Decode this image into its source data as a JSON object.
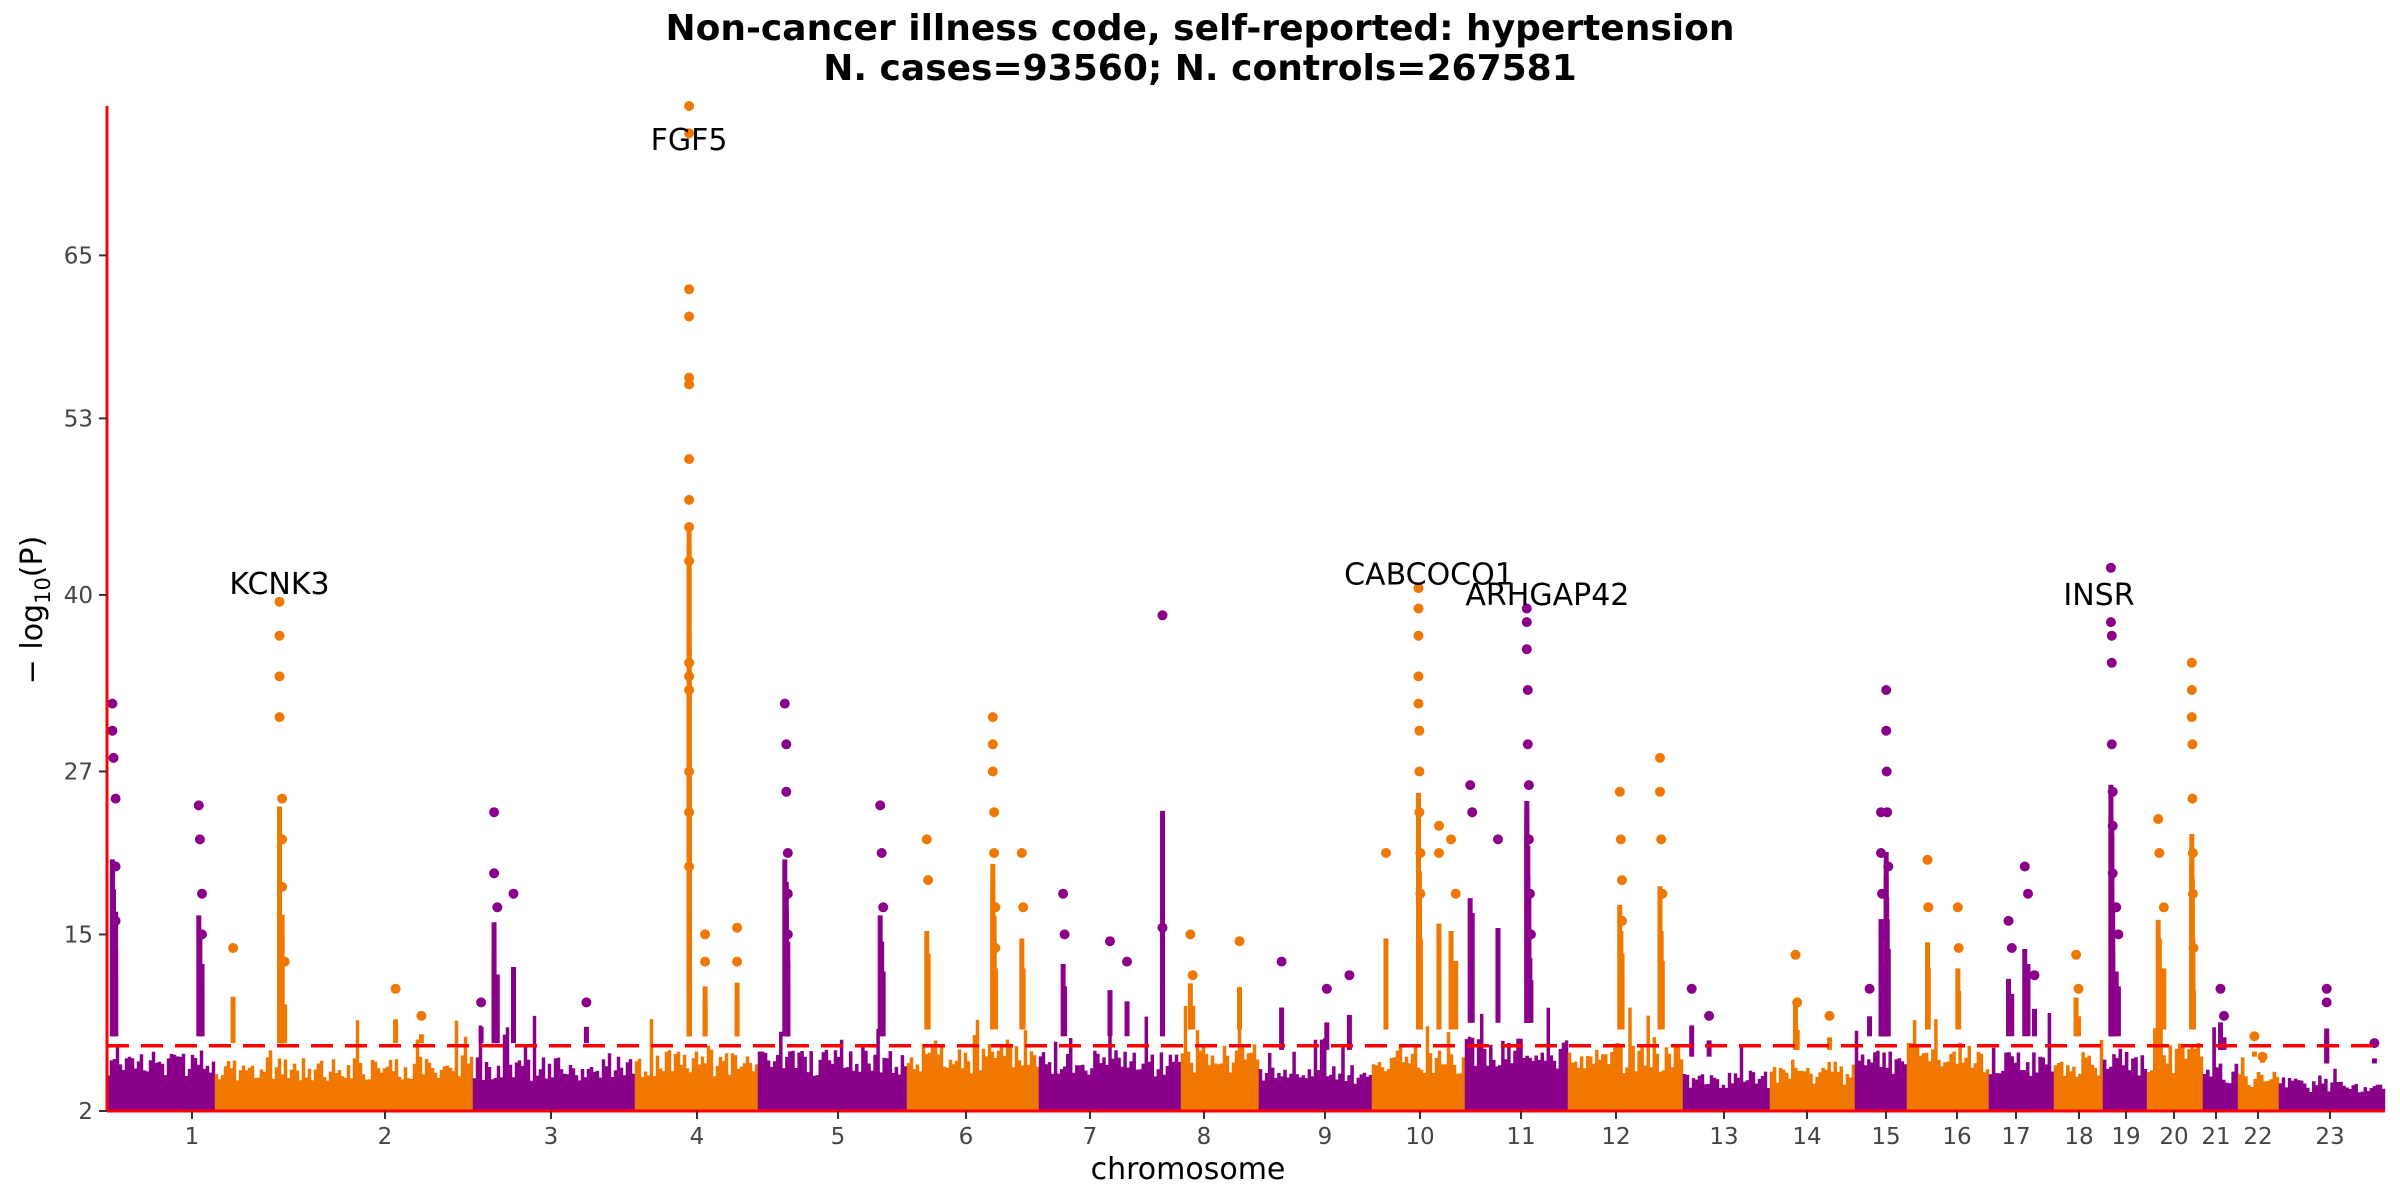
{
  "chart_data": {
    "type": "scatter",
    "subtype": "manhattan",
    "title": "Non-cancer illness code, self-reported: hypertension",
    "subtitle": "N. cases=93560; N. controls=267581",
    "xlabel": "chromosome",
    "ylabel_prefix": "− log",
    "ylabel_sub": "10",
    "ylabel_suffix": "(P)",
    "yticks": [
      2,
      15,
      27,
      40,
      53,
      65
    ],
    "ylim": [
      2,
      76
    ],
    "significance_threshold": 6.8,
    "colors": {
      "odd": "#8B008B",
      "even": "#F07800",
      "threshold": "#ff0000",
      "axis": "#ff0000"
    },
    "chromosomes": [
      {
        "label": "1",
        "bg": 6.5,
        "hits": [
          [
            0.05,
            32
          ],
          [
            0.05,
            30
          ],
          [
            0.06,
            28
          ],
          [
            0.08,
            25
          ],
          [
            0.08,
            20
          ],
          [
            0.08,
            16
          ],
          [
            0.85,
            24.5
          ],
          [
            0.86,
            22
          ],
          [
            0.88,
            18
          ],
          [
            0.88,
            15
          ]
        ]
      },
      {
        "label": "2",
        "bg": 6.0,
        "hits": [
          [
            0.07,
            14
          ],
          [
            0.25,
            39.5
          ],
          [
            0.25,
            37
          ],
          [
            0.25,
            34
          ],
          [
            0.25,
            31
          ],
          [
            0.26,
            25
          ],
          [
            0.26,
            22
          ],
          [
            0.26,
            18.5
          ],
          [
            0.27,
            13
          ],
          [
            0.7,
            11
          ],
          [
            0.8,
            9
          ]
        ]
      },
      {
        "label": "3",
        "bg": 6.0,
        "hits": [
          [
            0.05,
            10
          ],
          [
            0.13,
            24
          ],
          [
            0.13,
            19.5
          ],
          [
            0.15,
            17
          ],
          [
            0.25,
            18
          ],
          [
            0.7,
            10
          ]
        ]
      },
      {
        "label": "4",
        "bg": 6.5,
        "hits": [
          [
            0.44,
            76
          ],
          [
            0.44,
            74
          ],
          [
            0.44,
            62.5
          ],
          [
            0.44,
            60.5
          ],
          [
            0.44,
            56
          ],
          [
            0.44,
            55.5
          ],
          [
            0.44,
            50
          ],
          [
            0.44,
            47
          ],
          [
            0.44,
            45
          ],
          [
            0.44,
            42.5
          ],
          [
            0.44,
            35
          ],
          [
            0.44,
            34
          ],
          [
            0.44,
            33
          ],
          [
            0.44,
            27
          ],
          [
            0.44,
            24
          ],
          [
            0.44,
            20
          ],
          [
            0.57,
            15
          ],
          [
            0.57,
            13
          ],
          [
            0.83,
            15.5
          ],
          [
            0.83,
            13
          ]
        ]
      },
      {
        "label": "5",
        "bg": 6.5,
        "hits": [
          [
            0.18,
            32
          ],
          [
            0.19,
            29
          ],
          [
            0.19,
            25.5
          ],
          [
            0.2,
            21
          ],
          [
            0.2,
            18
          ],
          [
            0.2,
            15
          ],
          [
            0.82,
            24.5
          ],
          [
            0.83,
            21
          ],
          [
            0.84,
            17
          ]
        ]
      },
      {
        "label": "6",
        "bg": 7.0,
        "hits": [
          [
            0.15,
            22
          ],
          [
            0.16,
            19
          ],
          [
            0.65,
            31
          ],
          [
            0.65,
            29
          ],
          [
            0.65,
            27
          ],
          [
            0.66,
            24
          ],
          [
            0.66,
            21
          ],
          [
            0.67,
            17
          ],
          [
            0.67,
            14
          ],
          [
            0.87,
            21
          ],
          [
            0.88,
            17
          ]
        ]
      },
      {
        "label": "7",
        "bg": 6.5,
        "hits": [
          [
            0.17,
            18
          ],
          [
            0.18,
            15
          ],
          [
            0.5,
            14.5
          ],
          [
            0.62,
            13
          ],
          [
            0.87,
            38.5
          ],
          [
            0.87,
            15.5
          ]
        ]
      },
      {
        "label": "8",
        "bg": 7.0,
        "hits": [
          [
            0.12,
            15
          ],
          [
            0.15,
            12
          ],
          [
            0.75,
            14.5
          ]
        ]
      },
      {
        "label": "9",
        "bg": 5.5,
        "hits": [
          [
            0.2,
            13
          ],
          [
            0.6,
            11
          ],
          [
            0.8,
            12
          ]
        ]
      },
      {
        "label": "10",
        "bg": 7.0,
        "hits": [
          [
            0.15,
            21
          ],
          [
            0.5,
            40.5
          ],
          [
            0.5,
            39
          ],
          [
            0.5,
            37
          ],
          [
            0.5,
            34
          ],
          [
            0.5,
            32
          ],
          [
            0.51,
            30
          ],
          [
            0.51,
            27
          ],
          [
            0.51,
            24
          ],
          [
            0.52,
            21
          ],
          [
            0.52,
            18
          ],
          [
            0.72,
            23
          ],
          [
            0.72,
            21
          ],
          [
            0.85,
            22
          ],
          [
            0.9,
            18
          ]
        ]
      },
      {
        "label": "11",
        "bg": 7.5,
        "hits": [
          [
            0.05,
            26
          ],
          [
            0.07,
            24
          ],
          [
            0.32,
            22
          ],
          [
            0.6,
            39
          ],
          [
            0.6,
            38
          ],
          [
            0.6,
            36
          ],
          [
            0.61,
            33
          ],
          [
            0.61,
            29
          ],
          [
            0.62,
            26
          ],
          [
            0.62,
            22
          ],
          [
            0.63,
            18
          ],
          [
            0.64,
            15
          ]
        ]
      },
      {
        "label": "12",
        "bg": 7.0,
        "hits": [
          [
            0.45,
            25.5
          ],
          [
            0.46,
            22
          ],
          [
            0.47,
            19
          ],
          [
            0.47,
            16
          ],
          [
            0.8,
            28
          ],
          [
            0.8,
            25.5
          ],
          [
            0.81,
            22
          ],
          [
            0.82,
            18
          ]
        ]
      },
      {
        "label": "13",
        "bg": 5.0,
        "hits": [
          [
            0.1,
            11
          ],
          [
            0.3,
            9
          ]
        ]
      },
      {
        "label": "14",
        "bg": 5.5,
        "hits": [
          [
            0.3,
            13.5
          ],
          [
            0.32,
            10
          ],
          [
            0.7,
            9
          ]
        ]
      },
      {
        "label": "15",
        "bg": 6.5,
        "hits": [
          [
            0.28,
            11
          ],
          [
            0.5,
            24
          ],
          [
            0.5,
            21
          ],
          [
            0.52,
            18
          ],
          [
            0.56,
            15
          ],
          [
            0.6,
            33
          ],
          [
            0.6,
            30
          ],
          [
            0.61,
            27
          ],
          [
            0.62,
            24
          ],
          [
            0.64,
            20
          ]
        ]
      },
      {
        "label": "16",
        "bg": 7.0,
        "hits": [
          [
            0.25,
            20.5
          ],
          [
            0.26,
            17
          ],
          [
            0.62,
            17
          ],
          [
            0.63,
            14
          ]
        ]
      },
      {
        "label": "17",
        "bg": 6.5,
        "hits": [
          [
            0.3,
            16
          ],
          [
            0.35,
            14
          ],
          [
            0.55,
            20
          ],
          [
            0.6,
            18
          ],
          [
            0.7,
            12
          ]
        ]
      },
      {
        "label": "18",
        "bg": 6.5,
        "hits": [
          [
            0.45,
            13.5
          ],
          [
            0.5,
            11
          ]
        ]
      },
      {
        "label": "19",
        "bg": 6.5,
        "hits": [
          [
            0.18,
            42
          ],
          [
            0.18,
            38
          ],
          [
            0.2,
            37
          ],
          [
            0.2,
            35
          ],
          [
            0.2,
            29
          ],
          [
            0.22,
            25.5
          ],
          [
            0.22,
            23
          ],
          [
            0.22,
            19.5
          ],
          [
            0.3,
            17
          ],
          [
            0.35,
            15
          ]
        ]
      },
      {
        "label": "20",
        "bg": 7.0,
        "hits": [
          [
            0.2,
            23.5
          ],
          [
            0.22,
            21
          ],
          [
            0.3,
            17
          ],
          [
            0.8,
            35
          ],
          [
            0.8,
            33
          ],
          [
            0.8,
            31
          ],
          [
            0.81,
            29
          ],
          [
            0.81,
            25
          ],
          [
            0.82,
            21
          ],
          [
            0.82,
            18
          ],
          [
            0.83,
            14
          ]
        ]
      },
      {
        "label": "21",
        "bg": 5.5,
        "hits": [
          [
            0.5,
            11
          ],
          [
            0.6,
            9
          ]
        ]
      },
      {
        "label": "22",
        "bg": 5.0,
        "hits": [
          [
            0.4,
            7.5
          ],
          [
            0.6,
            6
          ]
        ]
      },
      {
        "label": "23",
        "bg": 4.5,
        "hits": [
          [
            0.45,
            11
          ],
          [
            0.45,
            10
          ],
          [
            0.9,
            7
          ]
        ]
      }
    ],
    "annotations": [
      {
        "gene": "FGF5",
        "chrom": "4",
        "pos": 0.44,
        "y": 73.5
      },
      {
        "gene": "KCNK3",
        "chrom": "2",
        "pos": 0.25,
        "y": 40.8
      },
      {
        "gene": "CABCOCO1",
        "chrom": "10",
        "pos": -0.3,
        "y": 41.5
      },
      {
        "gene": "ARHGAP42",
        "chrom": "11",
        "pos": 0.8,
        "y": 40
      },
      {
        "gene": "INSR",
        "chrom": "19",
        "pos": -0.9,
        "y": 40
      }
    ]
  }
}
